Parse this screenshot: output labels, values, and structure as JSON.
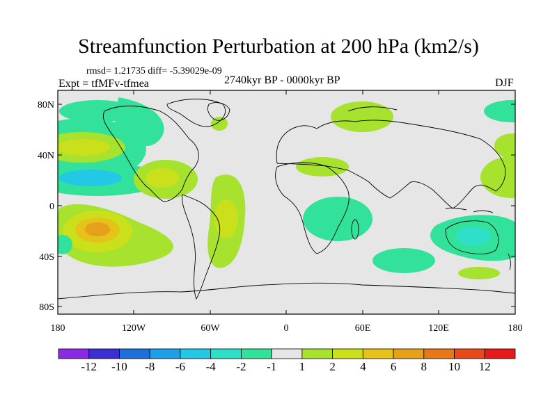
{
  "title": "Streamfunction Perturbation at 200 hPa (km2/s)",
  "stats_line": "rmsd= 1.21735 diff= -5.39029e-09",
  "experiment_line": "Expt = tfMFv-tfmea",
  "period_line": "2740kyr BP - 0000kyr BP",
  "season": "DJF",
  "map": {
    "y_labels": [
      "80N",
      "40N",
      "0",
      "40S",
      "80S"
    ],
    "x_labels": [
      "180",
      "120W",
      "60W",
      "0",
      "60E",
      "120E",
      "180"
    ]
  },
  "colorbar": {
    "colors": [
      "#8a2be2",
      "#3b2fd1",
      "#1e6fd9",
      "#1e9fe8",
      "#22c8e6",
      "#2ee0c8",
      "#33e29a",
      "#e6e6e6",
      "#a6e22e",
      "#c9e01a",
      "#e6c21a",
      "#e6a01a",
      "#e6781a",
      "#e64a1a",
      "#e61a1a"
    ],
    "labels": [
      "-12",
      "-10",
      "-8",
      "-6",
      "-4",
      "-2",
      "-1",
      "1",
      "2",
      "4",
      "6",
      "8",
      "10",
      "12"
    ]
  },
  "legend_colors": {
    "neg_strong": "#22c8e6",
    "neg": "#2ee0c8",
    "neg_weak": "#33e29a",
    "neutral": "#e6e6e6",
    "pos_weak": "#a6e22e",
    "pos": "#c9e01a",
    "pos_mid": "#e6c21a",
    "pos_strong": "#e6a01a",
    "pos_max": "#e6781a"
  }
}
